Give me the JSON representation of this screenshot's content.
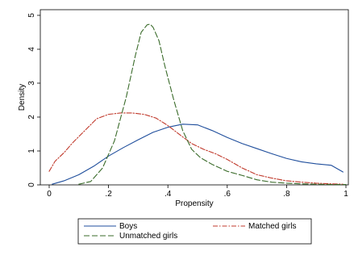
{
  "chart_data": {
    "type": "line",
    "title": "",
    "xlabel": "Propensity",
    "ylabel": "Density",
    "xlim": [
      0,
      1
    ],
    "ylim": [
      0,
      5
    ],
    "x_ticks": [
      0,
      0.2,
      0.4,
      0.6,
      0.8,
      1
    ],
    "x_tick_labels": [
      "0",
      ".2",
      ".4",
      ".6",
      ".8",
      "1"
    ],
    "y_ticks": [
      0,
      1,
      2,
      3,
      4,
      5
    ],
    "y_tick_labels": [
      "0",
      "1",
      "2",
      "3",
      "4",
      "5"
    ],
    "grid": false,
    "legend_placement": "bottom",
    "series": [
      {
        "name": "Boys",
        "color": "#1f4e9c",
        "dash": "solid",
        "x": [
          0.01,
          0.05,
          0.1,
          0.15,
          0.2,
          0.25,
          0.3,
          0.35,
          0.4,
          0.45,
          0.5,
          0.55,
          0.6,
          0.65,
          0.7,
          0.75,
          0.8,
          0.85,
          0.9,
          0.95,
          0.99
        ],
        "y": [
          0.02,
          0.12,
          0.3,
          0.55,
          0.85,
          1.1,
          1.33,
          1.55,
          1.7,
          1.79,
          1.77,
          1.6,
          1.4,
          1.22,
          1.07,
          0.92,
          0.78,
          0.68,
          0.62,
          0.58,
          0.38
        ]
      },
      {
        "name": "Matched girls",
        "color": "#c0392b",
        "dash": "dashdot",
        "x": [
          0.0,
          0.02,
          0.05,
          0.08,
          0.12,
          0.16,
          0.2,
          0.24,
          0.28,
          0.32,
          0.36,
          0.4,
          0.44,
          0.48,
          0.52,
          0.56,
          0.6,
          0.65,
          0.7,
          0.75,
          0.8,
          0.85,
          0.9,
          0.95,
          0.99
        ],
        "y": [
          0.4,
          0.7,
          0.95,
          1.25,
          1.6,
          1.95,
          2.08,
          2.12,
          2.12,
          2.08,
          1.97,
          1.75,
          1.48,
          1.22,
          1.05,
          0.92,
          0.75,
          0.5,
          0.3,
          0.2,
          0.12,
          0.08,
          0.05,
          0.03,
          0.02
        ]
      },
      {
        "name": "Unmatched girls",
        "color": "#3a6b2a",
        "dash": "dash",
        "x": [
          0.1,
          0.14,
          0.18,
          0.22,
          0.26,
          0.29,
          0.31,
          0.33,
          0.34,
          0.35,
          0.37,
          0.39,
          0.42,
          0.45,
          0.48,
          0.51,
          0.55,
          0.6,
          0.65,
          0.7,
          0.75,
          0.8,
          0.85,
          0.9,
          0.95,
          1.0
        ],
        "y": [
          0.02,
          0.1,
          0.5,
          1.3,
          2.6,
          3.8,
          4.5,
          4.72,
          4.74,
          4.65,
          4.25,
          3.5,
          2.5,
          1.6,
          1.05,
          0.8,
          0.6,
          0.4,
          0.28,
          0.15,
          0.08,
          0.05,
          0.03,
          0.02,
          0.01,
          0.01
        ]
      }
    ]
  }
}
